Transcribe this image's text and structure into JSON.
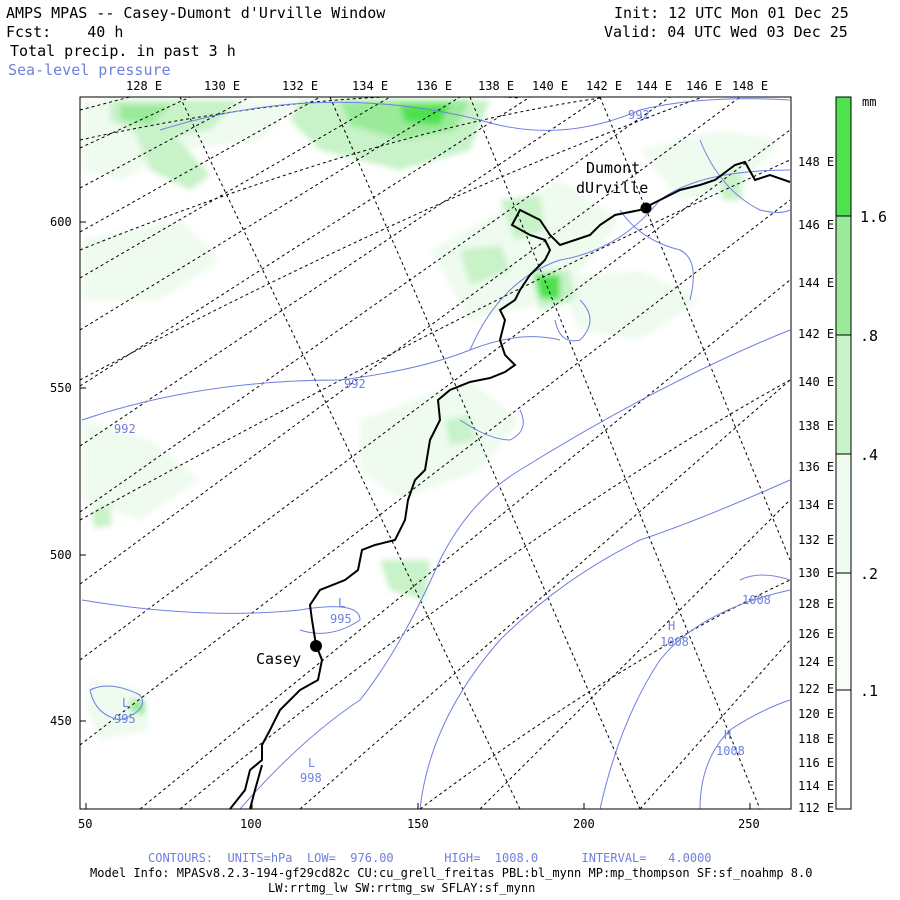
{
  "header": {
    "title": "AMPS MPAS -- Casey-Dumont d'Urville Window",
    "forecast_label": "Fcst:",
    "forecast_value": "40 h",
    "field": "Total precip. in past 3 h",
    "overlay": "Sea-level pressure",
    "init": "Init: 12 UTC Mon 01 Dec 25",
    "valid": "Valid: 04 UTC Wed 03 Dec 25"
  },
  "colors": {
    "contour": "#6f7fdf",
    "coast": "#000000",
    "precip_levels": [
      "#ffffff",
      "#eefbee",
      "#c8f2c8",
      "#9aea9a",
      "#4ee24e"
    ]
  },
  "axes": {
    "x_ticks": [
      "50",
      "100",
      "150",
      "200",
      "250"
    ],
    "y_ticks": [
      "600",
      "550",
      "500",
      "450"
    ],
    "top_lon_labels": [
      "128 E",
      "130 E",
      "132 E",
      "134 E",
      "136 E",
      "138 E",
      "140 E",
      "142 E",
      "144 E",
      "146 E",
      "148 E"
    ],
    "right_lon_labels": [
      "148 E",
      "146 E",
      "144 E",
      "142 E",
      "140 E",
      "138 E",
      "136 E",
      "134 E",
      "132 E",
      "130 E",
      "128 E",
      "126 E",
      "124 E",
      "122 E",
      "120 E",
      "118 E",
      "116 E",
      "114 E",
      "112 E"
    ]
  },
  "colorbar": {
    "unit": "mm",
    "labels": [
      "1.6",
      ".8",
      ".4",
      ".2",
      ".1"
    ]
  },
  "stations": [
    {
      "name_line1": "Dumont",
      "name_line2": "dUrville"
    },
    {
      "name_line1": "Casey",
      "name_line2": ""
    }
  ],
  "contour_labels": [
    "992",
    "992",
    "992",
    "L",
    "995",
    "L",
    "995",
    "L",
    "998",
    "H",
    "1008",
    "H",
    "1008",
    "1008"
  ],
  "footer": {
    "contours": "CONTOURS:  UNITS=hPa  LOW=  976.00       HIGH=  1008.0      INTERVAL=   4.0000",
    "model_info": "Model Info: MPASv8.2.3-194-gf29cd82c CU:cu_grell_freitas PBL:bl_mynn MP:mp_thompson SF:sf_noahmp 8.0",
    "physics": "LW:rrtmg_lw SW:rrtmg_sw SFLAY:sf_mynn"
  }
}
